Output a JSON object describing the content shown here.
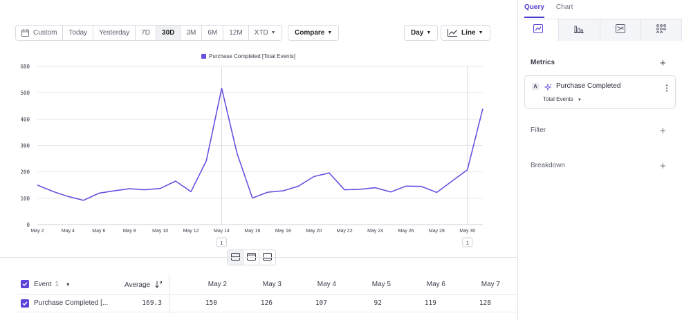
{
  "toolbar": {
    "range_buttons": [
      "Custom",
      "Today",
      "Yesterday",
      "7D",
      "30D",
      "3M",
      "6M",
      "12M",
      "XTD"
    ],
    "active_range": "30D",
    "compare_label": "Compare",
    "granularity_label": "Day",
    "chart_type_label": "Line"
  },
  "legend": {
    "label": "Purchase Completed [Total Events]",
    "color": "#6b4fe0"
  },
  "chart_data": {
    "type": "line",
    "title": "",
    "xlabel": "",
    "ylabel": "",
    "ylim": [
      0,
      600
    ],
    "yticks": [
      0,
      100,
      200,
      300,
      400,
      500,
      600
    ],
    "grid": true,
    "legend_position": "top-center",
    "x_tick_labels": [
      "May 2",
      "May 4",
      "May 6",
      "May 8",
      "May 10",
      "May 12",
      "May 14",
      "May 16",
      "May 18",
      "May 20",
      "May 22",
      "May 24",
      "May 26",
      "May 28",
      "May 30"
    ],
    "x": [
      "May 2",
      "May 3",
      "May 4",
      "May 5",
      "May 6",
      "May 7",
      "May 8",
      "May 9",
      "May 10",
      "May 11",
      "May 12",
      "May 13",
      "May 14",
      "May 15",
      "May 16",
      "May 17",
      "May 18",
      "May 19",
      "May 20",
      "May 21",
      "May 22",
      "May 23",
      "May 24",
      "May 25",
      "May 26",
      "May 27",
      "May 28",
      "May 29",
      "May 30",
      "May 31"
    ],
    "series": [
      {
        "name": "Purchase Completed [Total Events]",
        "color": "#6b4fe0",
        "values": [
          150,
          126,
          107,
          92,
          119,
          128,
          136,
          132,
          137,
          165,
          125,
          242,
          517,
          270,
          101,
          123,
          128,
          146,
          182,
          196,
          132,
          134,
          140,
          124,
          146,
          145,
          122,
          165,
          208,
          440
        ]
      }
    ],
    "annotations": [
      {
        "x": "May 14",
        "label": "1"
      },
      {
        "x": "May 30",
        "label": "1"
      }
    ]
  },
  "table": {
    "event_header": "Event",
    "event_count": "1",
    "average_header": "Average",
    "date_headers": [
      "May 2",
      "May 3",
      "May 4",
      "May 5",
      "May 6",
      "May 7"
    ],
    "rows": [
      {
        "name": "Purchase Completed [...",
        "average": "169.3",
        "values": [
          "150",
          "126",
          "107",
          "92",
          "119",
          "128"
        ]
      }
    ]
  },
  "panel": {
    "tabs": [
      "Query",
      "Chart"
    ],
    "active_tab": "Query",
    "chart_types": [
      "line-chart-icon",
      "bar-chart-icon",
      "flow-chart-icon",
      "dots-grid-icon"
    ],
    "metrics_title": "Metrics",
    "metric": {
      "letter": "A",
      "name": "Purchase Completed",
      "measure": "Total Events"
    },
    "filter_title": "Filter",
    "breakdown_title": "Breakdown"
  },
  "colors": {
    "accent": "#5b44d9",
    "line": "#6b4fe0",
    "grid": "#e6e7ec"
  }
}
